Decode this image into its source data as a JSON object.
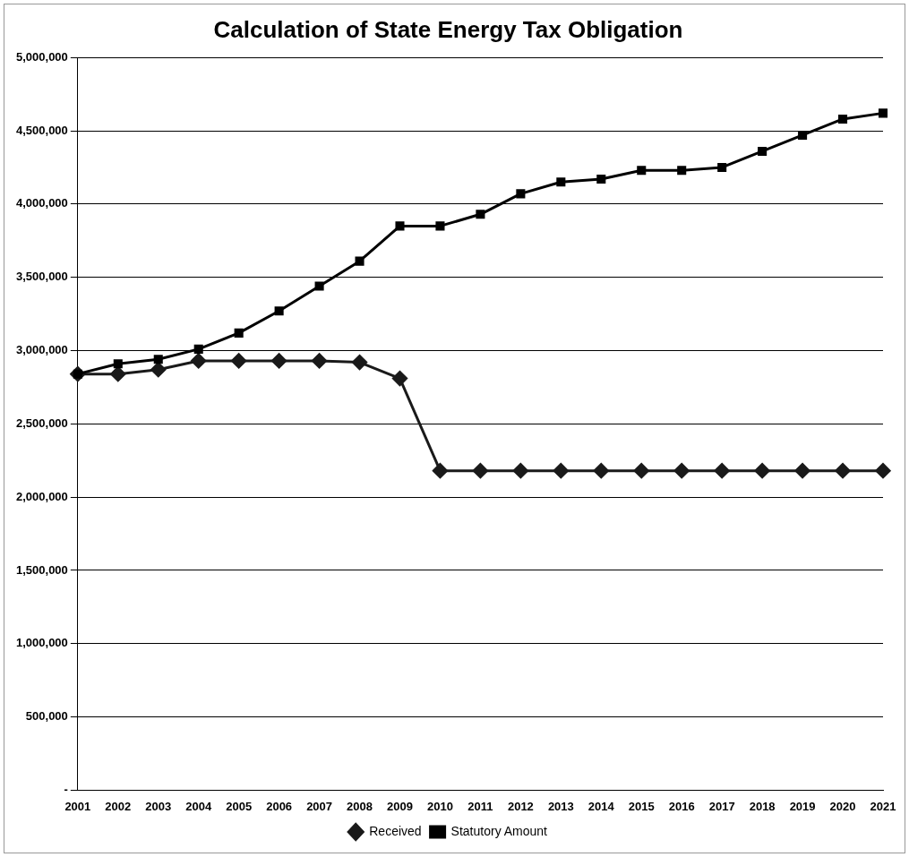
{
  "chart_data": {
    "type": "line",
    "title": "Calculation of State Energy Tax Obligation",
    "categories": [
      "2001",
      "2002",
      "2003",
      "2004",
      "2005",
      "2006",
      "2007",
      "2008",
      "2009",
      "2010",
      "2011",
      "2012",
      "2013",
      "2014",
      "2015",
      "2016",
      "2017",
      "2018",
      "2019",
      "2020",
      "2021"
    ],
    "series": [
      {
        "name": "Received",
        "color": "#1a1a1a",
        "marker": "diamond",
        "values": [
          2840000,
          2840000,
          2870000,
          2930000,
          2930000,
          2930000,
          2930000,
          2920000,
          2810000,
          2180000,
          2180000,
          2180000,
          2180000,
          2180000,
          2180000,
          2180000,
          2180000,
          2180000,
          2180000,
          2180000,
          2180000
        ]
      },
      {
        "name": "Statutory Amount",
        "color": "#000000",
        "marker": "square",
        "values": [
          2840000,
          2910000,
          2940000,
          3010000,
          3120000,
          3270000,
          3440000,
          3610000,
          3850000,
          3850000,
          3930000,
          4070000,
          4150000,
          4170000,
          4230000,
          4230000,
          4250000,
          4360000,
          4470000,
          4580000,
          4620000
        ]
      }
    ],
    "ylim": [
      0,
      5000000
    ],
    "yticks": [
      {
        "value": 0,
        "label": "-"
      },
      {
        "value": 500000,
        "label": "500,000"
      },
      {
        "value": 1000000,
        "label": "1,000,000"
      },
      {
        "value": 1500000,
        "label": "1,500,000"
      },
      {
        "value": 2000000,
        "label": "2,000,000"
      },
      {
        "value": 2500000,
        "label": "2,500,000"
      },
      {
        "value": 3000000,
        "label": "3,000,000"
      },
      {
        "value": 3500000,
        "label": "3,500,000"
      },
      {
        "value": 4000000,
        "label": "4,000,000"
      },
      {
        "value": 4500000,
        "label": "4,500,000"
      },
      {
        "value": 5000000,
        "label": "5,000,000"
      }
    ],
    "grid": "y",
    "legend": "bottom",
    "line_style": "solid"
  }
}
